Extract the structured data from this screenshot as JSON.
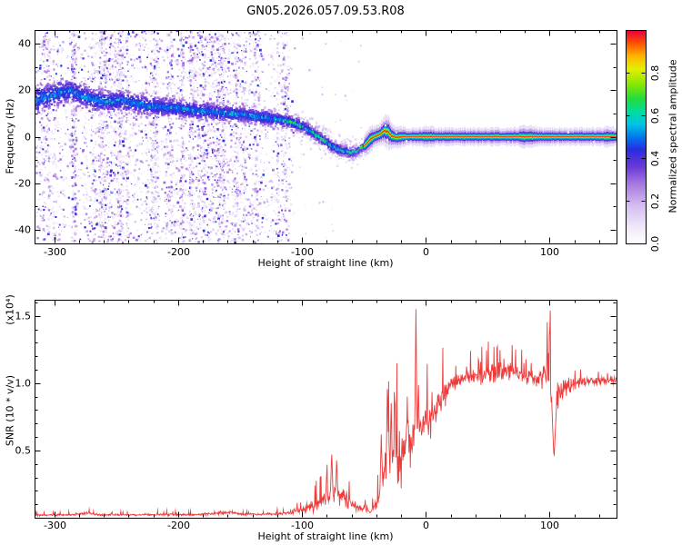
{
  "title": "GN05.2026.057.09.53.R08",
  "colors": {
    "background": "#ffffff",
    "axis": "#000000",
    "snr_line": "#ee3b3b"
  },
  "chart_data": [
    {
      "type": "heatmap",
      "name": "spectrogram",
      "xlabel": "Height of straight line (km)",
      "ylabel": "Frequency (Hz)",
      "xlim": [
        -316,
        154
      ],
      "ylim": [
        -46,
        46
      ],
      "xticks": {
        "values": [
          -300,
          -200,
          -100,
          0,
          100
        ],
        "labels": [
          "-300",
          "-200",
          "-100",
          "0",
          "100"
        ],
        "minor_step": 20
      },
      "yticks": {
        "values": [
          -40,
          -20,
          0,
          20,
          40
        ],
        "labels": [
          "-40",
          "-20",
          "0",
          "20",
          "40"
        ],
        "minor_step": 10
      },
      "colorbar": {
        "label": "Normalized spectral amplitude",
        "range": [
          0,
          1
        ],
        "ticks": {
          "values": [
            0,
            0.2,
            0.4,
            0.6,
            0.8
          ],
          "labels": [
            "0.0",
            "0.2",
            "0.4",
            "0.6",
            "0.8"
          ]
        }
      },
      "colormap": [
        [
          0.0,
          "#ffffff"
        ],
        [
          0.08,
          "#f0e8fa"
        ],
        [
          0.18,
          "#d4bdf0"
        ],
        [
          0.28,
          "#a878e0"
        ],
        [
          0.36,
          "#6a3ad8"
        ],
        [
          0.44,
          "#2b2be0"
        ],
        [
          0.5,
          "#0077ee"
        ],
        [
          0.56,
          "#00c4e4"
        ],
        [
          0.62,
          "#00dc9c"
        ],
        [
          0.68,
          "#22dc3c"
        ],
        [
          0.75,
          "#8ae800"
        ],
        [
          0.82,
          "#e6ee00"
        ],
        [
          0.88,
          "#ffb400"
        ],
        [
          0.94,
          "#ff5000"
        ],
        [
          1.0,
          "#e6003c"
        ]
      ],
      "noise_field": {
        "x_start": -316,
        "x_end": -105,
        "y_range": [
          -46,
          46
        ],
        "density_per_km": 55
      },
      "ridge": [
        [
          -316,
          16,
          9
        ],
        [
          -300,
          18,
          8
        ],
        [
          -288,
          20,
          7.5
        ],
        [
          -274,
          17,
          7
        ],
        [
          -260,
          15,
          7
        ],
        [
          -246,
          15.5,
          6.5
        ],
        [
          -232,
          14,
          6.5
        ],
        [
          -218,
          13,
          6
        ],
        [
          -204,
          12.5,
          6
        ],
        [
          -190,
          11.5,
          5.5
        ],
        [
          -176,
          11,
          5.5
        ],
        [
          -162,
          10,
          5
        ],
        [
          -148,
          9.5,
          5
        ],
        [
          -134,
          8.5,
          4.8
        ],
        [
          -120,
          7.5,
          4.5
        ],
        [
          -110,
          6.5,
          4.2
        ],
        [
          -100,
          4.5,
          4
        ],
        [
          -92,
          2,
          3.8
        ],
        [
          -84,
          -1,
          3.6
        ],
        [
          -76,
          -4,
          3.4
        ],
        [
          -68,
          -6,
          3.2
        ],
        [
          -61,
          -7,
          3
        ],
        [
          -55,
          -6,
          2.6
        ],
        [
          -50,
          -4,
          2.2
        ],
        [
          -46,
          -1.5,
          1.8
        ],
        [
          -42,
          0,
          1.4
        ],
        [
          -38,
          0.8,
          1.2
        ],
        [
          -34,
          2.6,
          1.2
        ],
        [
          -31,
          2.2,
          1.1
        ],
        [
          -28,
          0.3,
          1
        ],
        [
          -24,
          -0.4,
          1
        ],
        [
          -20,
          0,
          1
        ],
        [
          0,
          0,
          1
        ],
        [
          154,
          0,
          1
        ]
      ],
      "band_start_x": -50,
      "band_layers": [
        [
          0.1,
          3.8
        ],
        [
          0.22,
          2.6
        ],
        [
          0.38,
          1.7
        ],
        [
          0.52,
          1.15
        ],
        [
          0.62,
          0.8
        ],
        [
          0.78,
          0.5
        ],
        [
          0.95,
          0.26
        ]
      ],
      "band_widen": [
        [
          -46,
          0.55,
          4
        ],
        [
          -32,
          0.9,
          4.5
        ],
        [
          -22,
          0.25,
          4
        ],
        [
          0,
          0.15,
          6
        ],
        [
          82,
          0.3,
          7
        ],
        [
          148,
          0.15,
          5
        ]
      ]
    },
    {
      "type": "line",
      "name": "snr",
      "xlabel": "Height of straight line (km)",
      "ylabel": "SNR (10 * v/v)",
      "scale_label": "(x10⁴)",
      "xlim": [
        -316,
        154
      ],
      "ylim": [
        0,
        1.62
      ],
      "xticks": {
        "values": [
          -300,
          -200,
          -100,
          0,
          100
        ],
        "labels": [
          "-300",
          "-200",
          "-100",
          "0",
          "100"
        ],
        "minor_step": 20
      },
      "yticks": {
        "values": [
          0.5,
          1.0,
          1.5
        ],
        "labels": [
          "0.5",
          "1.0",
          "1.5"
        ],
        "minor_step": 0.1
      },
      "line_color": "#ee3b3b",
      "profile": [
        [
          -316,
          0.018,
          0.01
        ],
        [
          -290,
          0.02,
          0.012
        ],
        [
          -272,
          0.032,
          0.022
        ],
        [
          -265,
          0.022,
          0.012
        ],
        [
          -240,
          0.02,
          0.012
        ],
        [
          -220,
          0.022,
          0.014
        ],
        [
          -200,
          0.022,
          0.014
        ],
        [
          -185,
          0.02,
          0.012
        ],
        [
          -158,
          0.038,
          0.026
        ],
        [
          -148,
          0.024,
          0.014
        ],
        [
          -130,
          0.024,
          0.016
        ],
        [
          -112,
          0.03,
          0.022
        ],
        [
          -100,
          0.055,
          0.045
        ],
        [
          -90,
          0.085,
          0.075
        ],
        [
          -80,
          0.13,
          0.12
        ],
        [
          -72,
          0.17,
          0.16
        ],
        [
          -64,
          0.12,
          0.1
        ],
        [
          -56,
          0.07,
          0.05
        ],
        [
          -48,
          0.06,
          0.045
        ],
        [
          -42,
          0.07,
          0.06
        ],
        [
          -37,
          0.16,
          0.15
        ],
        [
          -33,
          0.4,
          0.34
        ],
        [
          -28,
          0.48,
          0.38
        ],
        [
          -22,
          0.42,
          0.34
        ],
        [
          -16,
          0.5,
          0.36
        ],
        [
          -10,
          0.58,
          0.4
        ],
        [
          -4,
          0.62,
          0.34
        ],
        [
          2,
          0.7,
          0.26
        ],
        [
          8,
          0.8,
          0.22
        ],
        [
          14,
          0.9,
          0.16
        ],
        [
          20,
          0.98,
          0.12
        ],
        [
          28,
          1.03,
          0.09
        ],
        [
          38,
          1.05,
          0.09
        ],
        [
          48,
          1.04,
          0.11
        ],
        [
          56,
          1.06,
          0.14
        ],
        [
          64,
          1.08,
          0.13
        ],
        [
          72,
          1.06,
          0.11
        ],
        [
          80,
          1.04,
          0.09
        ],
        [
          88,
          1.03,
          0.09
        ],
        [
          95,
          1.04,
          0.16
        ],
        [
          100,
          0.98,
          0.38
        ],
        [
          104,
          0.8,
          0.3
        ],
        [
          108,
          0.92,
          0.14
        ],
        [
          115,
          0.98,
          0.08
        ],
        [
          130,
          1.01,
          0.06
        ],
        [
          154,
          1.01,
          0.05
        ]
      ],
      "spikes": [
        [
          -80,
          0.34
        ],
        [
          -76,
          0.5
        ],
        [
          -72,
          0.44
        ],
        [
          -36,
          0.62
        ],
        [
          -31,
          1.02
        ],
        [
          -28,
          0.88
        ],
        [
          -25,
          0.96
        ],
        [
          -15,
          0.9
        ],
        [
          -8,
          1.55
        ],
        [
          -6,
          1.05
        ],
        [
          10,
          0.95
        ],
        [
          33,
          1.16
        ],
        [
          45,
          1.14
        ],
        [
          55,
          1.27
        ],
        [
          60,
          1.33
        ],
        [
          63,
          1.22
        ],
        [
          70,
          1.18
        ],
        [
          98,
          1.5
        ],
        [
          100,
          1.55
        ],
        [
          102,
          1.42
        ]
      ],
      "dips": [
        [
          103.5,
          0.44
        ],
        [
          -45,
          0.035
        ]
      ]
    }
  ]
}
